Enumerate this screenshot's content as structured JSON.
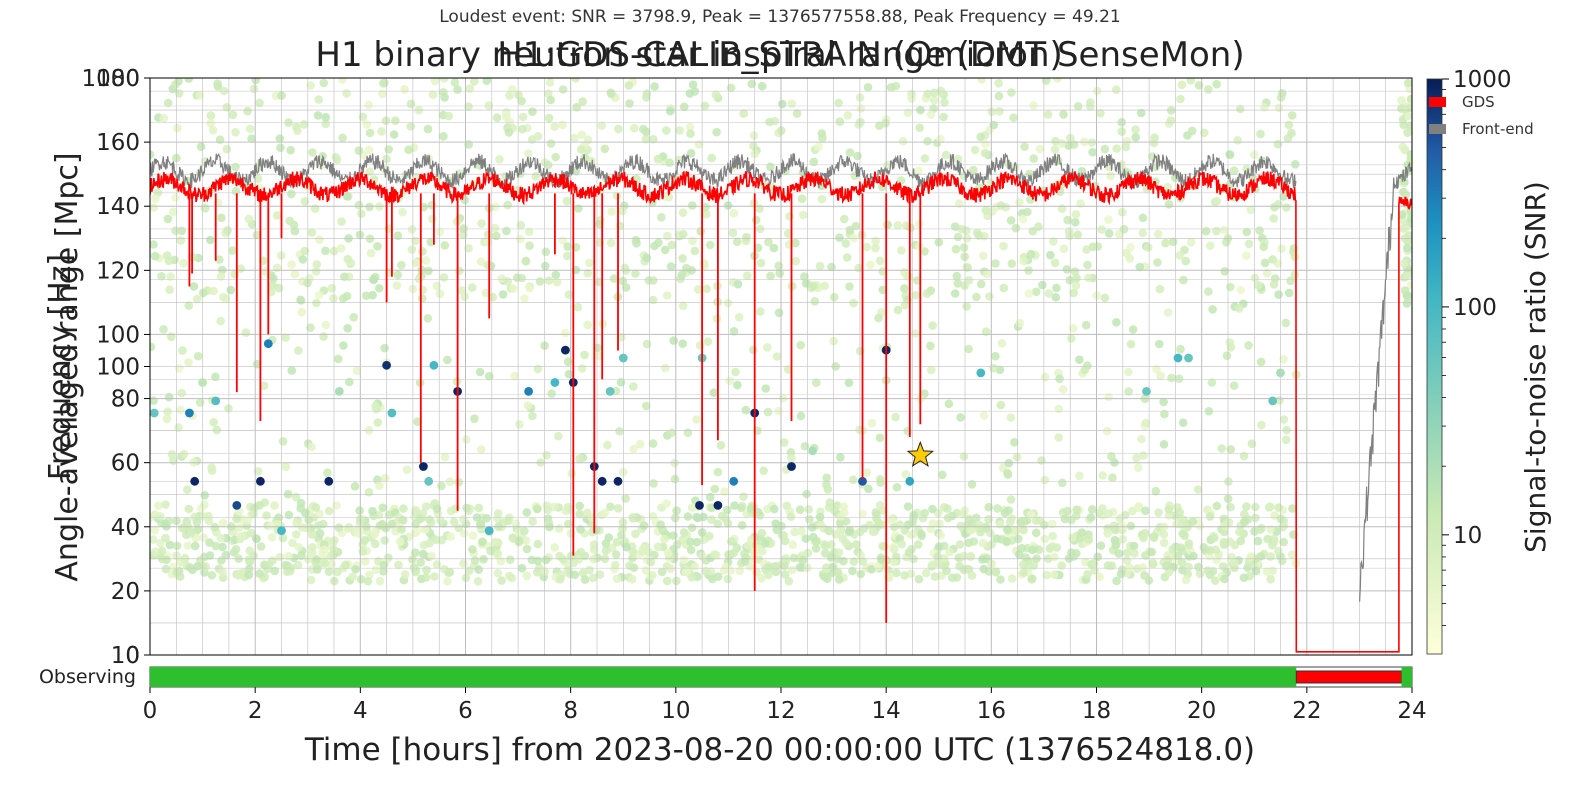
{
  "chart_data": {
    "type": "scatter",
    "title": "H1 binary neutron star inspiral range (DMT SenseMon)",
    "subtitle": "Loudest event: SNR = 3798.9, Peak = 1376577558.88, Peak Frequency = 49.21",
    "overlay_title": "H1:GDS-CALIB_STRAIN (Omicron)",
    "xlabel": "Time [hours] from 2023-08-20 00:00:00 UTC (1376524818.0)",
    "xlim": [
      0,
      24
    ],
    "x_ticks": [
      0,
      2,
      4,
      6,
      8,
      10,
      12,
      14,
      16,
      18,
      20,
      22,
      24
    ],
    "range_axis": {
      "label": "Angle-averaged range [Mpc]",
      "ylim": [
        0,
        180
      ],
      "ticks": [
        0,
        20,
        40,
        60,
        80,
        100,
        120,
        140,
        160,
        180
      ]
    },
    "frequency_axis": {
      "label": "Frequency [Hz]",
      "scale": "log",
      "ylim": [
        10,
        1000
      ],
      "ticks": [
        10,
        100,
        1000
      ]
    },
    "colorbar": {
      "label": "Signal-to-noise ratio (SNR)",
      "scale": "log",
      "range": [
        3,
        1000
      ],
      "ticks": [
        10,
        100,
        1000
      ]
    },
    "legend": {
      "placement": "top-right",
      "entries": [
        {
          "name": "GDS",
          "color": "#ff0000"
        },
        {
          "name": "Front-end",
          "color": "#808080"
        }
      ]
    },
    "range_series": [
      {
        "name": "GDS",
        "color": "#ff0000",
        "baseline_mpc": 146,
        "dips": [
          [
            0.75,
            115
          ],
          [
            0.8,
            119
          ],
          [
            1.25,
            123
          ],
          [
            1.65,
            82
          ],
          [
            2.1,
            73
          ],
          [
            2.25,
            100
          ],
          [
            2.5,
            130
          ],
          [
            4.5,
            110
          ],
          [
            4.6,
            118
          ],
          [
            5.15,
            60
          ],
          [
            5.4,
            128
          ],
          [
            5.85,
            45
          ],
          [
            6.45,
            105
          ],
          [
            7.7,
            125
          ],
          [
            8.05,
            31
          ],
          [
            8.45,
            38
          ],
          [
            8.6,
            86
          ],
          [
            8.9,
            95
          ],
          [
            10.5,
            53
          ],
          [
            10.8,
            67
          ],
          [
            11.5,
            20
          ],
          [
            12.2,
            73
          ],
          [
            13.55,
            55
          ],
          [
            14,
            10
          ],
          [
            14.45,
            68
          ],
          [
            14.65,
            72
          ]
        ],
        "gaps": [
          [
            21.8,
            23.75
          ]
        ],
        "gap_level_mpc": 1
      },
      {
        "name": "Front-end",
        "color": "#808080",
        "baseline_mpc": 151,
        "gaps": [
          [
            21.8,
            23.0
          ]
        ]
      }
    ],
    "observing": {
      "label": "Observing",
      "segments": [
        {
          "start": 0,
          "end": 21.8,
          "state": "observing",
          "color": "#2ebf2e"
        },
        {
          "start": 21.8,
          "end": 23.8,
          "state": "not observing",
          "color": "#ff0000"
        },
        {
          "start": 23.8,
          "end": 24,
          "state": "observing",
          "color": "#2ebf2e"
        }
      ]
    },
    "triggers_notable": [
      {
        "t": 0.08,
        "f": 69,
        "snr": 60
      },
      {
        "t": 0.75,
        "f": 69,
        "snr": 300
      },
      {
        "t": 0.85,
        "f": 40,
        "snr": 900
      },
      {
        "t": 1.0,
        "f": 88,
        "snr": 15
      },
      {
        "t": 1.25,
        "f": 76,
        "snr": 80
      },
      {
        "t": 1.65,
        "f": 33,
        "snr": 600
      },
      {
        "t": 2.1,
        "f": 40,
        "snr": 900
      },
      {
        "t": 2.25,
        "f": 120,
        "snr": 300
      },
      {
        "t": 2.5,
        "f": 27,
        "snr": 100
      },
      {
        "t": 3.4,
        "f": 40,
        "snr": 900
      },
      {
        "t": 3.6,
        "f": 82,
        "snr": 20
      },
      {
        "t": 4.25,
        "f": 200,
        "snr": 15
      },
      {
        "t": 4.5,
        "f": 101,
        "snr": 800
      },
      {
        "t": 4.6,
        "f": 69,
        "snr": 80
      },
      {
        "t": 5.2,
        "f": 45,
        "snr": 900
      },
      {
        "t": 5.3,
        "f": 40,
        "snr": 60
      },
      {
        "t": 5.4,
        "f": 101,
        "snr": 100
      },
      {
        "t": 5.85,
        "f": 82,
        "snr": 900
      },
      {
        "t": 6.45,
        "f": 27,
        "snr": 100
      },
      {
        "t": 7.2,
        "f": 82,
        "snr": 300
      },
      {
        "t": 7.7,
        "f": 88,
        "snr": 100
      },
      {
        "t": 7.9,
        "f": 114,
        "snr": 900
      },
      {
        "t": 8.05,
        "f": 88,
        "snr": 900
      },
      {
        "t": 8.45,
        "f": 45,
        "snr": 900
      },
      {
        "t": 8.6,
        "f": 40,
        "snr": 900
      },
      {
        "t": 8.75,
        "f": 82,
        "snr": 60
      },
      {
        "t": 8.9,
        "f": 40,
        "snr": 900
      },
      {
        "t": 9.0,
        "f": 107,
        "snr": 60
      },
      {
        "t": 10.45,
        "f": 33,
        "snr": 900
      },
      {
        "t": 10.5,
        "f": 107,
        "snr": 60
      },
      {
        "t": 10.8,
        "f": 33,
        "snr": 900
      },
      {
        "t": 11.1,
        "f": 40,
        "snr": 300
      },
      {
        "t": 11.5,
        "f": 69,
        "snr": 900
      },
      {
        "t": 12.2,
        "f": 45,
        "snr": 900
      },
      {
        "t": 12.6,
        "f": 51,
        "snr": 20
      },
      {
        "t": 13.55,
        "f": 40,
        "snr": 500
      },
      {
        "t": 14.0,
        "f": 114,
        "snr": 900
      },
      {
        "t": 14.45,
        "f": 40,
        "snr": 150
      },
      {
        "t": 15.8,
        "f": 95,
        "snr": 100
      },
      {
        "t": 18.95,
        "f": 82,
        "snr": 60
      },
      {
        "t": 19.55,
        "f": 107,
        "snr": 100
      },
      {
        "t": 19.75,
        "f": 107,
        "snr": 60
      },
      {
        "t": 21.35,
        "f": 76,
        "snr": 60
      },
      {
        "t": 21.5,
        "f": 95,
        "snr": 20
      }
    ],
    "triggers_background": {
      "count": 2400,
      "snr_range": [
        5,
        15
      ],
      "t_range": [
        0,
        21.8
      ],
      "f_range": [
        18,
        300
      ],
      "dense_bands_hz": [
        [
          18,
          33
        ],
        [
          170,
          1000
        ]
      ]
    },
    "loudest_event": {
      "t": 14.65,
      "f": 49.21,
      "snr": 3798.9,
      "marker": "star",
      "color": "#ffcc00"
    }
  }
}
